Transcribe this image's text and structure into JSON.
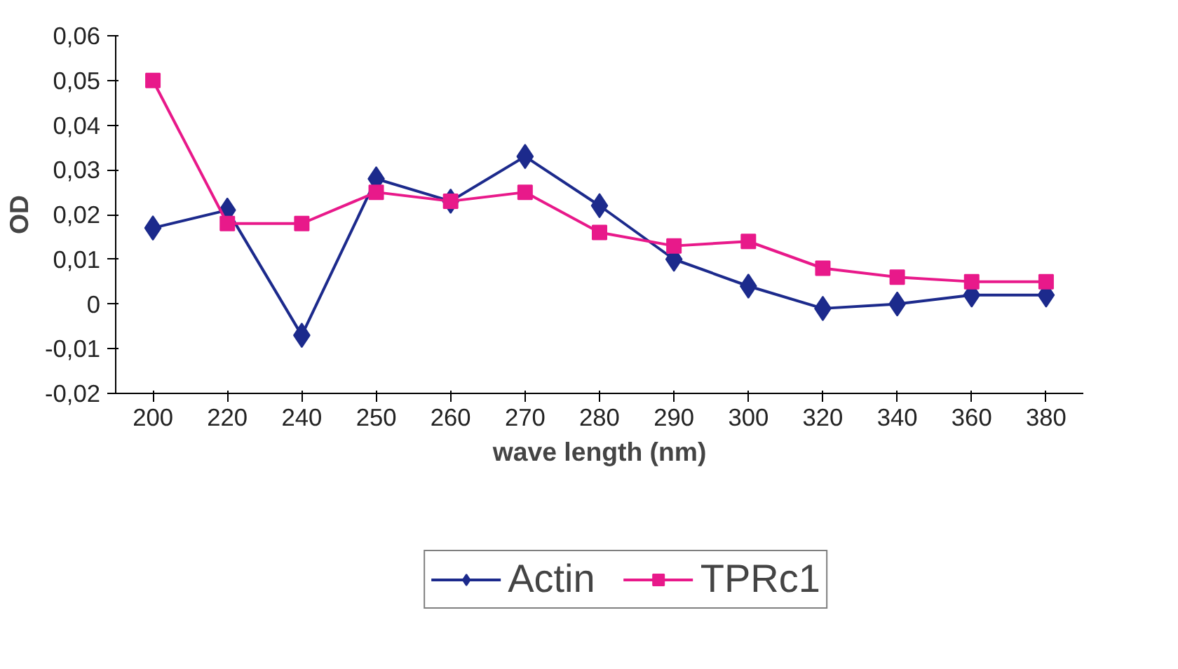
{
  "chart_data": {
    "type": "line",
    "xlabel": "wave length (nm)",
    "ylabel": "OD",
    "categories": [
      "200",
      "220",
      "240",
      "250",
      "260",
      "270",
      "280",
      "290",
      "300",
      "320",
      "340",
      "360",
      "380"
    ],
    "series": [
      {
        "name": "Actin",
        "color": "#1c2a8c",
        "marker": "diamond",
        "values": [
          0.017,
          0.021,
          -0.007,
          0.028,
          0.023,
          0.033,
          0.022,
          0.01,
          0.004,
          -0.001,
          0.0,
          0.002,
          0.002
        ]
      },
      {
        "name": "TPRc1",
        "color": "#e8198a",
        "marker": "square",
        "values": [
          0.05,
          0.018,
          0.018,
          0.025,
          0.023,
          0.025,
          0.016,
          0.013,
          0.014,
          0.008,
          0.006,
          0.005,
          0.005
        ]
      }
    ],
    "ylim": [
      -0.02,
      0.06
    ],
    "yticks": [
      {
        "value": -0.02,
        "label": "-0,02"
      },
      {
        "value": -0.01,
        "label": "-0,01"
      },
      0,
      {
        "value": 0.01,
        "label": "0,01"
      },
      {
        "value": 0.02,
        "label": "0,02"
      },
      {
        "value": 0.03,
        "label": "0,03"
      },
      {
        "value": 0.04,
        "label": "0,04"
      },
      {
        "value": 0.05,
        "label": "0,05"
      },
      {
        "value": 0.06,
        "label": "0,06"
      }
    ],
    "grid": false,
    "legend": "bottom",
    "line_style": "solid"
  }
}
